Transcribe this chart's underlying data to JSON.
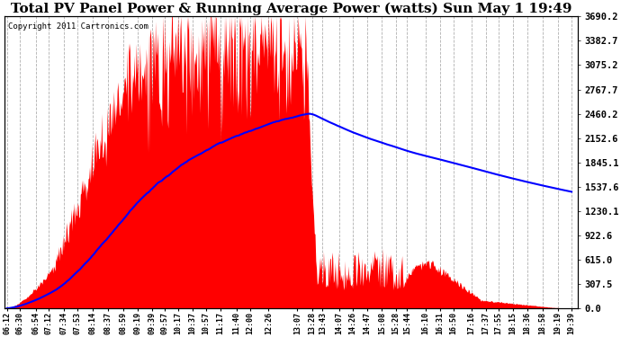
{
  "title": "Total PV Panel Power & Running Average Power (watts) Sun May 1 19:49",
  "copyright": "Copyright 2011 Cartronics.com",
  "background_color": "#ffffff",
  "plot_bg_color": "#ffffff",
  "y_ticks": [
    0.0,
    307.5,
    615.0,
    922.6,
    1230.1,
    1537.6,
    1845.1,
    2152.6,
    2460.2,
    2767.7,
    3075.2,
    3382.7,
    3690.2
  ],
  "y_max": 3690.2,
  "x_labels": [
    "06:12",
    "06:30",
    "06:54",
    "07:12",
    "07:34",
    "07:53",
    "08:14",
    "08:37",
    "08:59",
    "09:19",
    "09:39",
    "09:57",
    "10:17",
    "10:37",
    "10:57",
    "11:17",
    "11:40",
    "12:00",
    "12:26",
    "13:07",
    "13:28",
    "13:43",
    "14:07",
    "14:26",
    "14:47",
    "15:08",
    "15:28",
    "15:44",
    "16:10",
    "16:31",
    "16:50",
    "17:16",
    "17:37",
    "17:55",
    "18:15",
    "18:36",
    "18:58",
    "19:19",
    "19:39"
  ],
  "bar_color": "#ff0000",
  "line_color": "#0000ff",
  "grid_color": "#b0b0b0",
  "title_fontsize": 11,
  "axis_fontsize": 7.5
}
